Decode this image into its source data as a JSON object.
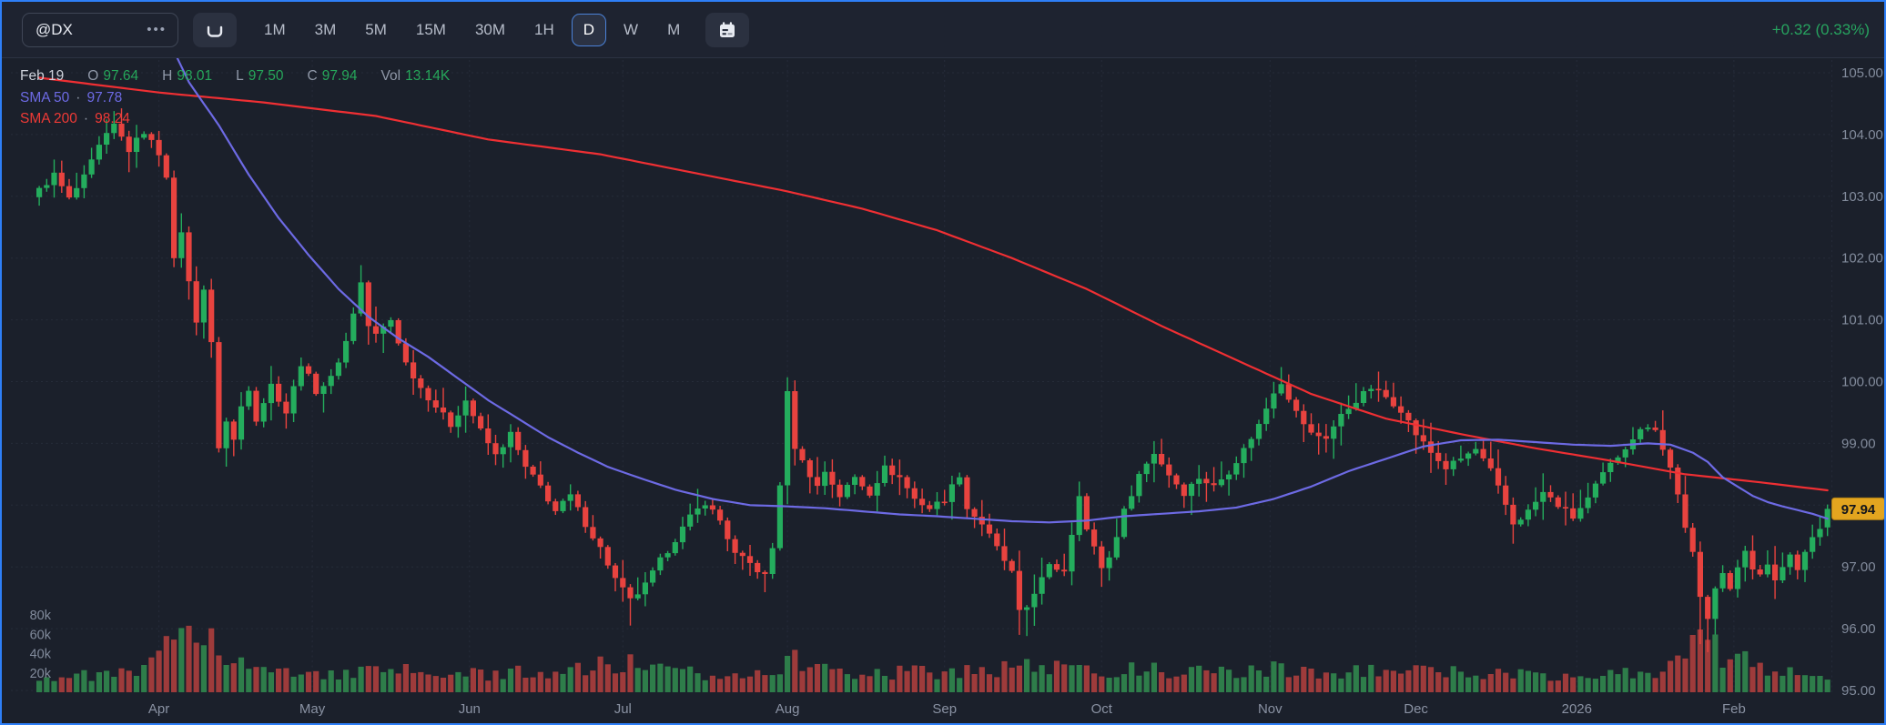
{
  "toolbar": {
    "symbol": "@DX",
    "symbol_menu_icon": "ellipsis-icon",
    "tick_interval_icon": "u-bracket-icon",
    "calendar_icon": "calendar-icon",
    "intervals": [
      "1M",
      "3M",
      "5M",
      "15M",
      "30M",
      "1H",
      "D",
      "W",
      "M"
    ],
    "selected_interval": "D",
    "change_text": "+0.32 (0.33%)"
  },
  "legend": {
    "date": "Feb 19",
    "separator": "·",
    "items": [
      {
        "label": "O",
        "value": "97.64"
      },
      {
        "label": "H",
        "value": "98.01"
      },
      {
        "label": "L",
        "value": "97.50"
      },
      {
        "label": "C",
        "value": "97.94"
      },
      {
        "label": "Vol",
        "value": "13.14K"
      }
    ],
    "sma50_label": "SMA 50",
    "sma50_value": "97.78",
    "sma200_label": "SMA 200",
    "sma200_value": "98.24"
  },
  "colors": {
    "up": "#24ad5d",
    "down": "#e8433f",
    "vol_up": "#2e7d4a",
    "vol_down": "#9e3b3b",
    "sma50": "#6d6ae4",
    "sma200": "#ef2f33",
    "grid": "#262c3a",
    "axis_text": "#828b9c",
    "tag_bg": "#e3a51f",
    "tag_border": "#b07f14",
    "tag_text": "#11141c"
  },
  "chart_data": {
    "type": "candlestick",
    "symbol": "@DX",
    "timeframe": "D",
    "y_axis": {
      "min": 95,
      "max": 105,
      "tick_labels": [
        "105.00",
        "104.00",
        "103.00",
        "102.00",
        "101.00",
        "100.00",
        "99.00",
        "98.00",
        "97.00",
        "96.00",
        "95.00"
      ],
      "tick_values": [
        105,
        104,
        103,
        102,
        101,
        100,
        99,
        98,
        97,
        96,
        95
      ]
    },
    "x_axis": {
      "labels": [
        "Apr",
        "May",
        "Jun",
        "Jul",
        "Aug",
        "Sep",
        "Oct",
        "Nov",
        "Dec",
        "2026",
        "Feb"
      ],
      "positions": [
        16,
        36.5,
        57.5,
        78,
        100,
        121,
        142,
        164.5,
        184,
        205.5,
        226.5
      ]
    },
    "volume_axis": {
      "labels": [
        "80k",
        "60k",
        "40k",
        "20k"
      ],
      "values": [
        80,
        60,
        40,
        20
      ]
    },
    "num_candles": 240,
    "last_price_label": "97.94",
    "last_candle": {
      "open": 97.64,
      "high": 98.01,
      "low": 97.5,
      "close": 97.94,
      "volume_k": 13.14
    },
    "close_anchors": [
      [
        0,
        103.1
      ],
      [
        2,
        103.35
      ],
      [
        4,
        102.95
      ],
      [
        6,
        103.3
      ],
      [
        8,
        103.8
      ],
      [
        10,
        104.15
      ],
      [
        12,
        103.75
      ],
      [
        14,
        104.05
      ],
      [
        16,
        103.7
      ],
      [
        17,
        103.35
      ],
      [
        18,
        101.95
      ],
      [
        19,
        102.45
      ],
      [
        20,
        101.6
      ],
      [
        21,
        101.0
      ],
      [
        22,
        101.5
      ],
      [
        23,
        100.6
      ],
      [
        24,
        98.95
      ],
      [
        25,
        99.35
      ],
      [
        26,
        99.05
      ],
      [
        27,
        99.6
      ],
      [
        28,
        99.9
      ],
      [
        29,
        99.4
      ],
      [
        31,
        99.95
      ],
      [
        33,
        99.5
      ],
      [
        35,
        100.3
      ],
      [
        37,
        99.85
      ],
      [
        39,
        100.05
      ],
      [
        41,
        100.65
      ],
      [
        43,
        101.6
      ],
      [
        44,
        100.9
      ],
      [
        45,
        100.75
      ],
      [
        47,
        101.0
      ],
      [
        49,
        100.3
      ],
      [
        51,
        99.9
      ],
      [
        53,
        99.6
      ],
      [
        55,
        99.3
      ],
      [
        57,
        99.7
      ],
      [
        59,
        99.2
      ],
      [
        61,
        98.8
      ],
      [
        63,
        99.15
      ],
      [
        65,
        98.6
      ],
      [
        67,
        98.3
      ],
      [
        69,
        97.9
      ],
      [
        71,
        98.15
      ],
      [
        73,
        97.7
      ],
      [
        75,
        97.3
      ],
      [
        77,
        96.8
      ],
      [
        79,
        96.45
      ],
      [
        81,
        96.7
      ],
      [
        83,
        97.1
      ],
      [
        85,
        97.45
      ],
      [
        87,
        97.8
      ],
      [
        89,
        98.05
      ],
      [
        91,
        97.75
      ],
      [
        93,
        97.2
      ],
      [
        95,
        97.05
      ],
      [
        97,
        96.85
      ],
      [
        98,
        97.3
      ],
      [
        99,
        98.35
      ],
      [
        100,
        99.8
      ],
      [
        101,
        98.95
      ],
      [
        102,
        98.7
      ],
      [
        104,
        98.3
      ],
      [
        105,
        98.55
      ],
      [
        107,
        98.15
      ],
      [
        109,
        98.45
      ],
      [
        111,
        98.2
      ],
      [
        113,
        98.6
      ],
      [
        115,
        98.45
      ],
      [
        117,
        98.1
      ],
      [
        119,
        97.95
      ],
      [
        121,
        98.1
      ],
      [
        123,
        98.5
      ],
      [
        124,
        97.95
      ],
      [
        126,
        97.7
      ],
      [
        128,
        97.3
      ],
      [
        130,
        96.9
      ],
      [
        131,
        96.25
      ],
      [
        132,
        96.35
      ],
      [
        133,
        96.6
      ],
      [
        135,
        97.0
      ],
      [
        137,
        96.95
      ],
      [
        138,
        97.55
      ],
      [
        139,
        98.2
      ],
      [
        140,
        97.6
      ],
      [
        141,
        97.3
      ],
      [
        142,
        97.0
      ],
      [
        143,
        97.15
      ],
      [
        145,
        97.9
      ],
      [
        147,
        98.5
      ],
      [
        149,
        98.85
      ],
      [
        151,
        98.5
      ],
      [
        153,
        98.2
      ],
      [
        155,
        98.45
      ],
      [
        157,
        98.3
      ],
      [
        159,
        98.55
      ],
      [
        161,
        98.9
      ],
      [
        163,
        99.3
      ],
      [
        165,
        99.85
      ],
      [
        166,
        100.0
      ],
      [
        168,
        99.5
      ],
      [
        170,
        99.15
      ],
      [
        172,
        99.1
      ],
      [
        174,
        99.45
      ],
      [
        176,
        99.7
      ],
      [
        178,
        99.9
      ],
      [
        180,
        99.75
      ],
      [
        182,
        99.55
      ],
      [
        184,
        99.15
      ],
      [
        186,
        98.85
      ],
      [
        188,
        98.6
      ],
      [
        190,
        98.75
      ],
      [
        192,
        98.9
      ],
      [
        194,
        98.55
      ],
      [
        196,
        98.0
      ],
      [
        197,
        97.7
      ],
      [
        199,
        97.9
      ],
      [
        201,
        98.2
      ],
      [
        203,
        98.0
      ],
      [
        205,
        97.8
      ],
      [
        207,
        98.1
      ],
      [
        209,
        98.5
      ],
      [
        211,
        98.8
      ],
      [
        213,
        99.1
      ],
      [
        215,
        99.3
      ],
      [
        216,
        99.25
      ],
      [
        217,
        98.9
      ],
      [
        218,
        98.6
      ],
      [
        219,
        98.2
      ],
      [
        220,
        97.6
      ],
      [
        221,
        97.2
      ],
      [
        222,
        96.5
      ],
      [
        223,
        96.2
      ],
      [
        224,
        96.7
      ],
      [
        225,
        96.9
      ],
      [
        226,
        96.6
      ],
      [
        227,
        97.0
      ],
      [
        228,
        97.3
      ],
      [
        229,
        97.0
      ],
      [
        230,
        96.85
      ],
      [
        231,
        97.0
      ],
      [
        232,
        96.8
      ],
      [
        233,
        97.0
      ],
      [
        234,
        97.2
      ],
      [
        235,
        97.0
      ],
      [
        236,
        97.25
      ],
      [
        237,
        97.5
      ],
      [
        238,
        97.6
      ],
      [
        239,
        97.94
      ]
    ],
    "sma50_anchors": [
      [
        17,
        105.6
      ],
      [
        20,
        104.85
      ],
      [
        24,
        104.15
      ],
      [
        28,
        103.35
      ],
      [
        32,
        102.65
      ],
      [
        36,
        102.05
      ],
      [
        40,
        101.5
      ],
      [
        44,
        101.05
      ],
      [
        48,
        100.7
      ],
      [
        52,
        100.4
      ],
      [
        56,
        100.05
      ],
      [
        60,
        99.7
      ],
      [
        64,
        99.4
      ],
      [
        68,
        99.1
      ],
      [
        72,
        98.85
      ],
      [
        76,
        98.62
      ],
      [
        80,
        98.45
      ],
      [
        85,
        98.25
      ],
      [
        90,
        98.1
      ],
      [
        95,
        98.0
      ],
      [
        100,
        97.98
      ],
      [
        105,
        97.95
      ],
      [
        110,
        97.9
      ],
      [
        115,
        97.85
      ],
      [
        120,
        97.82
      ],
      [
        125,
        97.78
      ],
      [
        130,
        97.74
      ],
      [
        135,
        97.72
      ],
      [
        140,
        97.75
      ],
      [
        145,
        97.82
      ],
      [
        150,
        97.86
      ],
      [
        155,
        97.9
      ],
      [
        160,
        97.96
      ],
      [
        165,
        98.1
      ],
      [
        170,
        98.3
      ],
      [
        175,
        98.55
      ],
      [
        180,
        98.75
      ],
      [
        185,
        98.95
      ],
      [
        190,
        99.05
      ],
      [
        195,
        99.06
      ],
      [
        200,
        99.02
      ],
      [
        205,
        98.98
      ],
      [
        210,
        98.96
      ],
      [
        215,
        99.0
      ],
      [
        218,
        98.98
      ],
      [
        221,
        98.85
      ],
      [
        223,
        98.7
      ],
      [
        225,
        98.45
      ],
      [
        227,
        98.3
      ],
      [
        229,
        98.15
      ],
      [
        231,
        98.05
      ],
      [
        233,
        97.98
      ],
      [
        235,
        97.92
      ],
      [
        237,
        97.86
      ],
      [
        239,
        97.78
      ]
    ],
    "sma200_anchors": [
      [
        0,
        104.92
      ],
      [
        16,
        104.68
      ],
      [
        30,
        104.52
      ],
      [
        45,
        104.3
      ],
      [
        60,
        103.92
      ],
      [
        75,
        103.68
      ],
      [
        90,
        103.32
      ],
      [
        100,
        103.08
      ],
      [
        110,
        102.8
      ],
      [
        120,
        102.45
      ],
      [
        130,
        102.0
      ],
      [
        140,
        101.5
      ],
      [
        150,
        100.9
      ],
      [
        160,
        100.35
      ],
      [
        170,
        99.8
      ],
      [
        180,
        99.4
      ],
      [
        190,
        99.15
      ],
      [
        200,
        98.92
      ],
      [
        210,
        98.72
      ],
      [
        220,
        98.5
      ],
      [
        230,
        98.37
      ],
      [
        239,
        98.24
      ]
    ],
    "volume_anchors_k": [
      [
        0,
        16
      ],
      [
        10,
        18
      ],
      [
        14,
        22
      ],
      [
        17,
        45
      ],
      [
        19,
        72
      ],
      [
        21,
        65
      ],
      [
        23,
        74
      ],
      [
        25,
        42
      ],
      [
        28,
        26
      ],
      [
        32,
        20
      ],
      [
        40,
        19
      ],
      [
        48,
        22
      ],
      [
        56,
        18
      ],
      [
        64,
        20
      ],
      [
        72,
        24
      ],
      [
        78,
        30
      ],
      [
        85,
        20
      ],
      [
        92,
        18
      ],
      [
        98,
        26
      ],
      [
        100,
        34
      ],
      [
        102,
        30
      ],
      [
        108,
        20
      ],
      [
        116,
        21
      ],
      [
        124,
        22
      ],
      [
        130,
        26
      ],
      [
        132,
        28
      ],
      [
        138,
        22
      ],
      [
        144,
        24
      ],
      [
        150,
        22
      ],
      [
        158,
        20
      ],
      [
        164,
        24
      ],
      [
        172,
        20
      ],
      [
        180,
        22
      ],
      [
        188,
        20
      ],
      [
        196,
        19
      ],
      [
        204,
        18
      ],
      [
        210,
        19
      ],
      [
        216,
        22
      ],
      [
        219,
        30
      ],
      [
        221,
        44
      ],
      [
        223,
        52
      ],
      [
        225,
        40
      ],
      [
        227,
        46
      ],
      [
        229,
        32
      ],
      [
        232,
        24
      ],
      [
        235,
        18
      ],
      [
        238,
        14
      ],
      [
        239,
        13.1
      ]
    ],
    "wick_overrides": [
      [
        10,
        "h",
        104.38
      ],
      [
        79,
        "l",
        96.05
      ],
      [
        100,
        "h",
        100.07
      ],
      [
        101,
        "h",
        100.02
      ],
      [
        131,
        "l",
        95.9
      ],
      [
        132,
        "l",
        95.88
      ],
      [
        222,
        "l",
        95.75
      ],
      [
        223,
        "l",
        95.62
      ]
    ]
  }
}
